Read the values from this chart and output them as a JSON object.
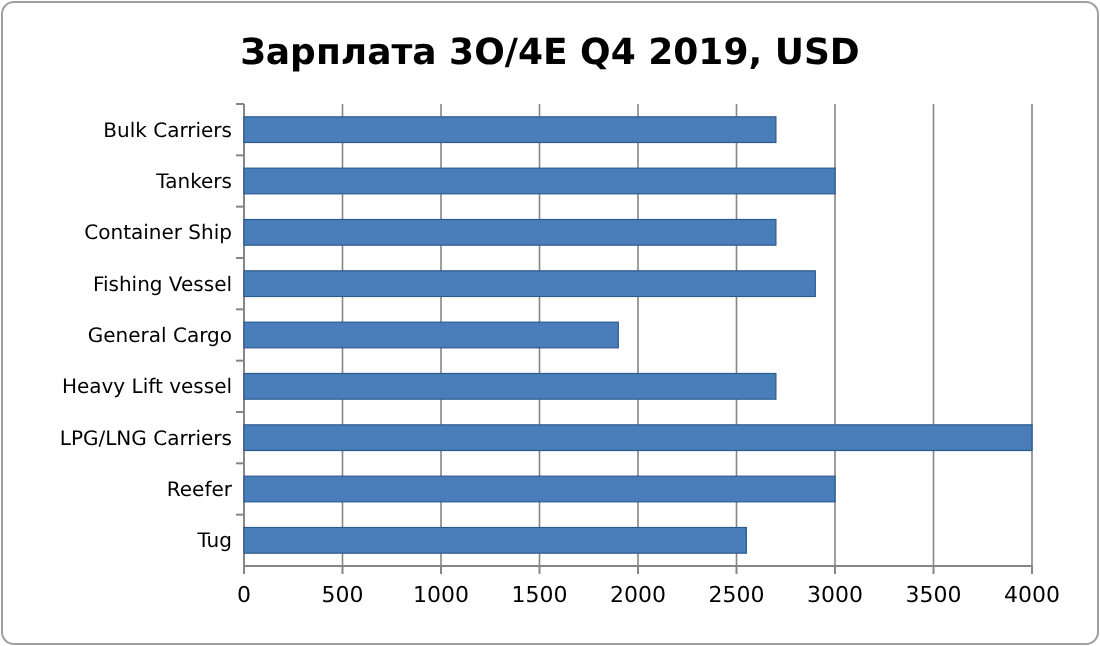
{
  "chart_data": {
    "type": "bar",
    "orientation": "horizontal",
    "title": "Зарплата 3O/4E Q4 2019, USD",
    "categories": [
      "Bulk Carriers",
      "Tankers",
      "Container Ship",
      "Fishing Vessel",
      "General Cargo",
      "Heavy Lift vessel",
      "LPG/LNG Carriers",
      "Reefer",
      "Tug"
    ],
    "values": [
      2700,
      3000,
      2700,
      2900,
      1900,
      2700,
      4000,
      3000,
      2550
    ],
    "color": "#4a7ebb",
    "xlim": [
      0,
      4000
    ],
    "xticks": [
      0,
      500,
      1000,
      1500,
      2000,
      2500,
      3000,
      3500,
      4000
    ],
    "grid": "x"
  }
}
